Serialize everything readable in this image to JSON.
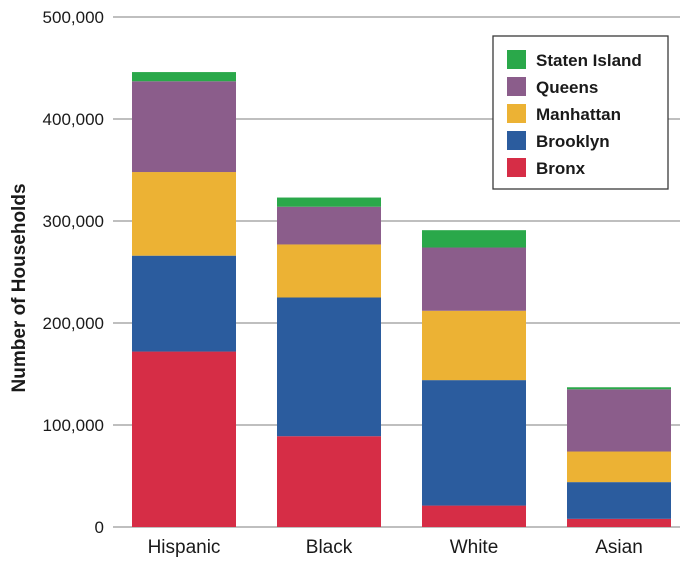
{
  "chart_data": {
    "type": "bar",
    "stacked": true,
    "title": "",
    "xlabel": "",
    "ylabel": "Number of Households",
    "ylim": [
      0,
      500000
    ],
    "y_ticks": [
      "0",
      "100,000",
      "200,000",
      "300,000",
      "400,000",
      "500,000"
    ],
    "y_tick_values": [
      0,
      100000,
      200000,
      300000,
      400000,
      500000
    ],
    "grid": true,
    "legend_position": "top-right",
    "categories": [
      "Hispanic",
      "Black",
      "White",
      "Asian"
    ],
    "series": [
      {
        "name": "Bronx",
        "color": "#d62d46",
        "values": [
          172000,
          89000,
          21000,
          8000
        ]
      },
      {
        "name": "Brooklyn",
        "color": "#2b5c9e",
        "values": [
          94000,
          136000,
          123000,
          36000
        ]
      },
      {
        "name": "Manhattan",
        "color": "#ecb234",
        "values": [
          82000,
          52000,
          68000,
          30000
        ]
      },
      {
        "name": "Queens",
        "color": "#8b5d8b",
        "values": [
          89000,
          37000,
          62000,
          61000
        ]
      },
      {
        "name": "Staten Island",
        "color": "#2aa84a",
        "values": [
          9000,
          9000,
          17000,
          2000
        ]
      }
    ]
  }
}
